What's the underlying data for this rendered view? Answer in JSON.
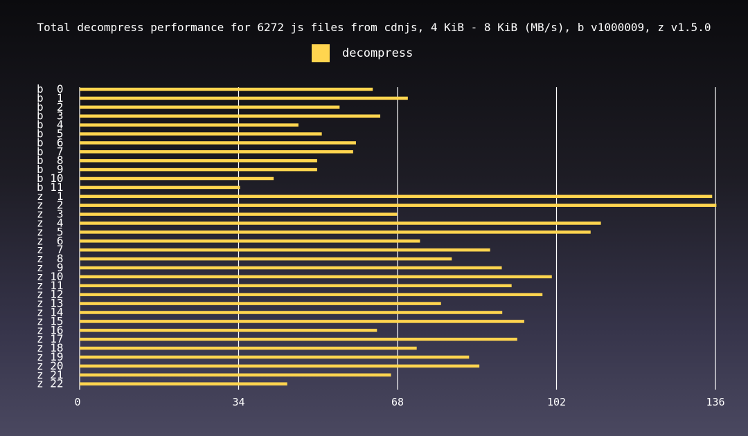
{
  "chart_data": {
    "type": "bar",
    "orientation": "horizontal",
    "title": "Total decompress performance for 6272 js files from cdnjs, 4 KiB - 8 KiB (MB/s), b v1000009, z v1.5.0",
    "series": [
      {
        "name": "decompress",
        "color": "#ffd54f",
        "values": [
          62.7,
          70.2,
          55.6,
          64.3,
          46.8,
          51.8,
          59.1,
          58.5,
          50.8,
          50.8,
          41.5,
          34.3,
          135.3,
          136.2,
          67.9,
          111.5,
          109.3,
          72.8,
          87.8,
          79.6,
          90.3,
          101.0,
          92.4,
          99.0,
          77.3,
          90.4,
          95.1,
          63.6,
          93.6,
          72.1,
          83.3,
          85.5,
          66.6,
          44.4
        ]
      }
    ],
    "categories": [
      "b  0",
      "b  1",
      "b  2",
      "b  3",
      "b  4",
      "b  5",
      "b  6",
      "b  7",
      "b  8",
      "b  9",
      "b 10",
      "b 11",
      "z  1",
      "z  2",
      "z  3",
      "z  4",
      "z  5",
      "z  6",
      "z  7",
      "z  8",
      "z  9",
      "z 10",
      "z 11",
      "z 12",
      "z 13",
      "z 14",
      "z 15",
      "z 16",
      "z 17",
      "z 18",
      "z 19",
      "z 20",
      "z 21",
      "z 22"
    ],
    "xticks": [
      0,
      34,
      68,
      102,
      136
    ],
    "xlim": [
      0,
      136
    ],
    "grid": true,
    "legend_position": "top-center"
  }
}
